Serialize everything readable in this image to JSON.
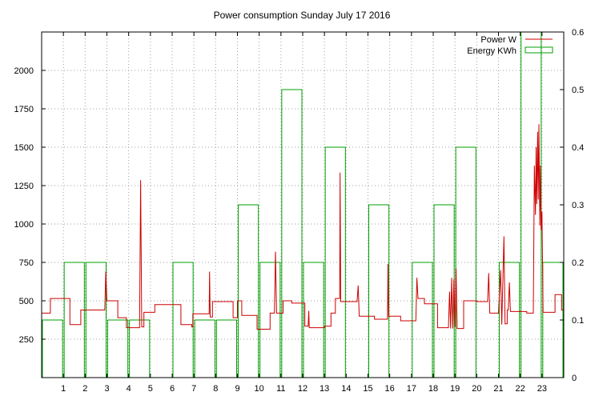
{
  "chart_data": {
    "type": "line",
    "title": "Power consumption Sunday July 17 2016",
    "x": {
      "ticks": [
        1,
        2,
        3,
        4,
        5,
        6,
        7,
        8,
        9,
        10,
        11,
        12,
        13,
        14,
        15,
        16,
        17,
        18,
        19,
        20,
        21,
        22,
        23
      ],
      "range": [
        0,
        24
      ]
    },
    "y_left": {
      "ticks": [
        250,
        500,
        750,
        1000,
        1250,
        1500,
        1750,
        2000
      ],
      "range": [
        0,
        2250
      ]
    },
    "y_right": {
      "ticks": [
        "0",
        "0.1",
        "0.2",
        "0.3",
        "0.4",
        "0.5",
        "0.6"
      ],
      "range": [
        0,
        0.6
      ]
    },
    "legend": {
      "position": "top-right"
    },
    "grid": true,
    "series": [
      {
        "name": "Power W",
        "axis": "left",
        "color": "#cc0000",
        "style": "line",
        "points": [
          [
            0.0,
            420
          ],
          [
            0.4,
            420
          ],
          [
            0.4,
            515
          ],
          [
            1.3,
            515
          ],
          [
            1.3,
            345
          ],
          [
            1.8,
            345
          ],
          [
            1.8,
            440
          ],
          [
            2.9,
            440
          ],
          [
            2.95,
            690
          ],
          [
            3.0,
            500
          ],
          [
            3.5,
            500
          ],
          [
            3.5,
            390
          ],
          [
            3.9,
            390
          ],
          [
            3.9,
            325
          ],
          [
            4.5,
            325
          ],
          [
            4.55,
            1285
          ],
          [
            4.6,
            330
          ],
          [
            4.7,
            330
          ],
          [
            4.7,
            425
          ],
          [
            5.2,
            425
          ],
          [
            5.2,
            475
          ],
          [
            6.4,
            475
          ],
          [
            6.4,
            345
          ],
          [
            6.9,
            345
          ],
          [
            6.9,
            330
          ],
          [
            6.95,
            330
          ],
          [
            6.95,
            415
          ],
          [
            7.7,
            415
          ],
          [
            7.72,
            690
          ],
          [
            7.75,
            395
          ],
          [
            7.85,
            395
          ],
          [
            7.85,
            495
          ],
          [
            8.8,
            495
          ],
          [
            8.8,
            390
          ],
          [
            9.0,
            390
          ],
          [
            9.0,
            500
          ],
          [
            9.2,
            500
          ],
          [
            9.2,
            405
          ],
          [
            9.9,
            405
          ],
          [
            9.9,
            315
          ],
          [
            10.5,
            315
          ],
          [
            10.5,
            420
          ],
          [
            10.7,
            420
          ],
          [
            10.75,
            820
          ],
          [
            10.8,
            420
          ],
          [
            11.1,
            420
          ],
          [
            11.1,
            500
          ],
          [
            11.5,
            500
          ],
          [
            11.5,
            485
          ],
          [
            12.1,
            485
          ],
          [
            12.1,
            335
          ],
          [
            12.25,
            335
          ],
          [
            12.28,
            435
          ],
          [
            12.3,
            325
          ],
          [
            13.0,
            325
          ],
          [
            13.0,
            335
          ],
          [
            13.3,
            335
          ],
          [
            13.3,
            420
          ],
          [
            13.5,
            420
          ],
          [
            13.5,
            515
          ],
          [
            13.7,
            515
          ],
          [
            13.72,
            1335
          ],
          [
            13.75,
            495
          ],
          [
            14.5,
            495
          ],
          [
            14.55,
            600
          ],
          [
            14.6,
            400
          ],
          [
            15.3,
            400
          ],
          [
            15.3,
            380
          ],
          [
            15.9,
            380
          ],
          [
            15.92,
            740
          ],
          [
            15.95,
            400
          ],
          [
            16.5,
            400
          ],
          [
            16.5,
            370
          ],
          [
            17.2,
            370
          ],
          [
            17.25,
            650
          ],
          [
            17.3,
            515
          ],
          [
            17.6,
            515
          ],
          [
            17.6,
            480
          ],
          [
            18.2,
            480
          ],
          [
            18.2,
            325
          ],
          [
            18.7,
            325
          ],
          [
            18.75,
            560
          ],
          [
            18.8,
            320
          ],
          [
            18.85,
            650
          ],
          [
            18.9,
            320
          ],
          [
            18.95,
            640
          ],
          [
            19.0,
            330
          ],
          [
            19.05,
            710
          ],
          [
            19.1,
            320
          ],
          [
            19.4,
            320
          ],
          [
            19.4,
            500
          ],
          [
            20.0,
            500
          ],
          [
            20.0,
            495
          ],
          [
            20.5,
            495
          ],
          [
            20.55,
            680
          ],
          [
            20.6,
            420
          ],
          [
            21.0,
            420
          ],
          [
            21.1,
            700
          ],
          [
            21.15,
            345
          ],
          [
            21.25,
            920
          ],
          [
            21.3,
            350
          ],
          [
            21.4,
            350
          ],
          [
            21.4,
            440
          ],
          [
            21.45,
            440
          ],
          [
            21.5,
            620
          ],
          [
            21.55,
            430
          ],
          [
            22.3,
            430
          ],
          [
            22.3,
            420
          ],
          [
            22.6,
            420
          ],
          [
            22.65,
            1380
          ],
          [
            22.7,
            1060
          ],
          [
            22.73,
            1500
          ],
          [
            22.76,
            1130
          ],
          [
            22.8,
            1600
          ],
          [
            22.83,
            1160
          ],
          [
            22.86,
            1650
          ],
          [
            22.9,
            990
          ],
          [
            22.93,
            1380
          ],
          [
            22.96,
            960
          ],
          [
            23.0,
            1080
          ],
          [
            23.05,
            425
          ],
          [
            23.6,
            425
          ],
          [
            23.6,
            540
          ],
          [
            23.9,
            540
          ],
          [
            23.9,
            440
          ],
          [
            24.0,
            440
          ]
        ]
      },
      {
        "name": "Energy KWh",
        "axis": "right",
        "color": "#00a000",
        "style": "histep",
        "bins": [
          [
            0,
            0.1
          ],
          [
            1,
            0.2
          ],
          [
            2,
            0.2
          ],
          [
            3,
            0.1
          ],
          [
            4,
            0.1
          ],
          [
            5,
            0
          ],
          [
            6,
            0.2
          ],
          [
            7,
            0.1
          ],
          [
            8,
            0.1
          ],
          [
            9,
            0.3
          ],
          [
            10,
            0.2
          ],
          [
            11,
            0.5
          ],
          [
            12,
            0.2
          ],
          [
            13,
            0.4
          ],
          [
            14,
            0
          ],
          [
            15,
            0.3
          ],
          [
            16,
            0
          ],
          [
            17,
            0.2
          ],
          [
            18,
            0.3
          ],
          [
            19,
            0.4
          ],
          [
            20,
            0
          ],
          [
            21,
            0.2
          ],
          [
            22,
            0.6
          ],
          [
            23,
            0.2
          ]
        ]
      }
    ]
  }
}
